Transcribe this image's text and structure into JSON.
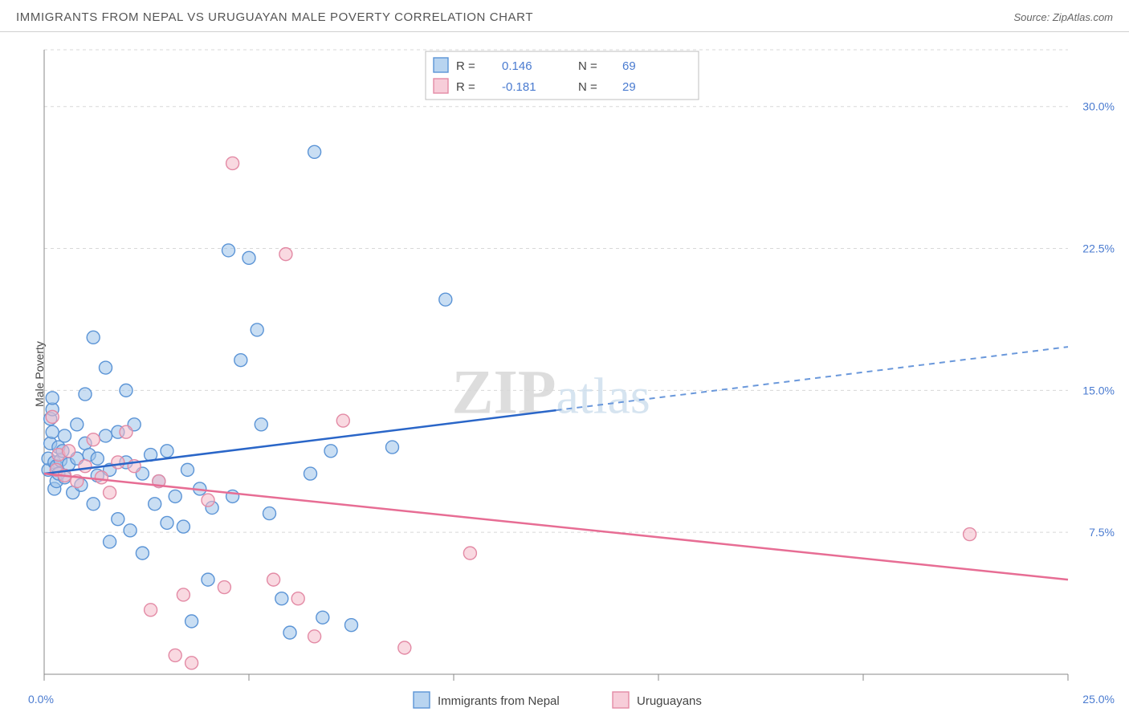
{
  "meta": {
    "title": "IMMIGRANTS FROM NEPAL VS URUGUAYAN MALE POVERTY CORRELATION CHART",
    "source_label": "Source: ZipAtlas.com",
    "ylabel": "Male Poverty",
    "watermark_zip": "ZIP",
    "watermark_atlas": "atlas"
  },
  "chart": {
    "type": "scatter+regression",
    "background_color": "#ffffff",
    "grid_color": "#d8d8d8",
    "axis_color": "#888888",
    "tick_label_color": "#4a7bd0",
    "tick_fontsize": 14,
    "label_fontsize": 14,
    "title_fontsize": 15,
    "xlim": [
      0,
      25
    ],
    "ylim": [
      0,
      33
    ],
    "x_ticks": [
      0,
      5,
      10,
      15,
      20,
      25
    ],
    "x_tick_labels": [
      "0.0%",
      "",
      "",
      "",
      "",
      "25.0%"
    ],
    "y_ticks": [
      7.5,
      15.0,
      22.5,
      30.0
    ],
    "y_tick_labels": [
      "7.5%",
      "15.0%",
      "22.5%",
      "30.0%"
    ],
    "marker_radius": 8,
    "marker_opacity": 0.55,
    "series": [
      {
        "name": "Immigrants from Nepal",
        "key": "nepal",
        "fill_color": "#9cc2ea",
        "stroke_color": "#5b94d6",
        "trend_color": "#2a66c8",
        "trend_dash_color": "#6a98db",
        "R": 0.146,
        "N": 69,
        "R_label": "0.146",
        "N_label": "69",
        "trend": {
          "y_at_x0": 10.6,
          "y_at_x25": 17.3,
          "solid_until_x": 12.5
        },
        "points": [
          [
            0.1,
            10.8
          ],
          [
            0.1,
            11.4
          ],
          [
            0.15,
            12.2
          ],
          [
            0.15,
            13.5
          ],
          [
            0.2,
            14.0
          ],
          [
            0.2,
            14.6
          ],
          [
            0.2,
            12.8
          ],
          [
            0.25,
            9.8
          ],
          [
            0.25,
            11.2
          ],
          [
            0.3,
            10.2
          ],
          [
            0.3,
            11.0
          ],
          [
            0.35,
            12.0
          ],
          [
            0.35,
            10.6
          ],
          [
            0.4,
            11.3
          ],
          [
            0.45,
            11.8
          ],
          [
            0.5,
            10.4
          ],
          [
            0.5,
            12.6
          ],
          [
            0.6,
            11.1
          ],
          [
            0.7,
            9.6
          ],
          [
            0.8,
            11.4
          ],
          [
            0.8,
            13.2
          ],
          [
            0.9,
            10.0
          ],
          [
            1.0,
            12.2
          ],
          [
            1.0,
            14.8
          ],
          [
            1.1,
            11.6
          ],
          [
            1.2,
            17.8
          ],
          [
            1.2,
            9.0
          ],
          [
            1.3,
            11.4
          ],
          [
            1.3,
            10.5
          ],
          [
            1.5,
            12.6
          ],
          [
            1.5,
            16.2
          ],
          [
            1.6,
            10.8
          ],
          [
            1.6,
            7.0
          ],
          [
            1.8,
            12.8
          ],
          [
            1.8,
            8.2
          ],
          [
            2.0,
            15.0
          ],
          [
            2.0,
            11.2
          ],
          [
            2.1,
            7.6
          ],
          [
            2.2,
            13.2
          ],
          [
            2.4,
            10.6
          ],
          [
            2.4,
            6.4
          ],
          [
            2.6,
            11.6
          ],
          [
            2.7,
            9.0
          ],
          [
            2.8,
            10.2
          ],
          [
            3.0,
            8.0
          ],
          [
            3.0,
            11.8
          ],
          [
            3.2,
            9.4
          ],
          [
            3.4,
            7.8
          ],
          [
            3.5,
            10.8
          ],
          [
            3.6,
            2.8
          ],
          [
            3.8,
            9.8
          ],
          [
            4.0,
            5.0
          ],
          [
            4.1,
            8.8
          ],
          [
            4.5,
            22.4
          ],
          [
            4.6,
            9.4
          ],
          [
            4.8,
            16.6
          ],
          [
            5.0,
            22.0
          ],
          [
            5.2,
            18.2
          ],
          [
            5.3,
            13.2
          ],
          [
            5.5,
            8.5
          ],
          [
            5.8,
            4.0
          ],
          [
            6.0,
            2.2
          ],
          [
            6.5,
            10.6
          ],
          [
            6.6,
            27.6
          ],
          [
            6.8,
            3.0
          ],
          [
            7.0,
            11.8
          ],
          [
            7.5,
            2.6
          ],
          [
            8.5,
            12.0
          ],
          [
            9.8,
            19.8
          ]
        ]
      },
      {
        "name": "Uruguayans",
        "key": "uruguay",
        "fill_color": "#f4b9c9",
        "stroke_color": "#e38aa5",
        "trend_color": "#e76d94",
        "R": -0.181,
        "N": 29,
        "R_label": "-0.181",
        "N_label": "29",
        "trend": {
          "y_at_x0": 10.6,
          "y_at_x25": 5.0,
          "solid_until_x": 25
        },
        "points": [
          [
            0.2,
            13.6
          ],
          [
            0.3,
            10.8
          ],
          [
            0.35,
            11.6
          ],
          [
            0.5,
            10.5
          ],
          [
            0.6,
            11.8
          ],
          [
            0.8,
            10.2
          ],
          [
            1.0,
            11.0
          ],
          [
            1.2,
            12.4
          ],
          [
            1.4,
            10.4
          ],
          [
            1.6,
            9.6
          ],
          [
            1.8,
            11.2
          ],
          [
            2.0,
            12.8
          ],
          [
            2.2,
            11.0
          ],
          [
            2.6,
            3.4
          ],
          [
            2.8,
            10.2
          ],
          [
            3.2,
            1.0
          ],
          [
            3.4,
            4.2
          ],
          [
            3.6,
            0.6
          ],
          [
            4.0,
            9.2
          ],
          [
            4.4,
            4.6
          ],
          [
            4.6,
            27.0
          ],
          [
            5.6,
            5.0
          ],
          [
            5.9,
            22.2
          ],
          [
            6.2,
            4.0
          ],
          [
            6.6,
            2.0
          ],
          [
            7.3,
            13.4
          ],
          [
            8.8,
            1.4
          ],
          [
            10.4,
            6.4
          ],
          [
            22.6,
            7.4
          ]
        ]
      }
    ],
    "stats_legend": {
      "R_label": "R  =",
      "N_label": "N  ="
    },
    "bottom_legend": {
      "items": [
        "Immigrants from Nepal",
        "Uruguayans"
      ]
    }
  }
}
